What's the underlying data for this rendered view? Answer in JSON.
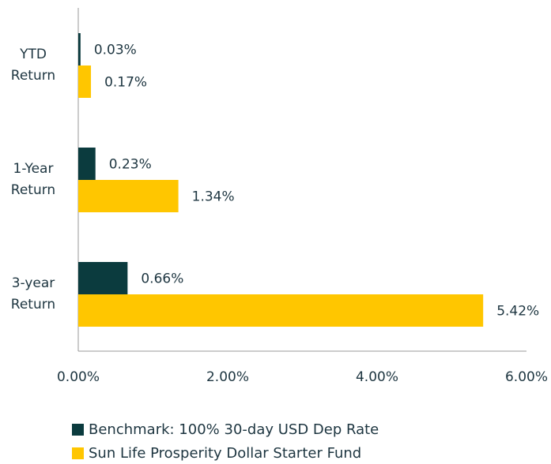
{
  "chart_data": {
    "type": "hbar",
    "categories": [
      "YTD Return",
      "1-Year Return",
      "3-year Return"
    ],
    "series": [
      {
        "name": "Benchmark: 100% 30-day USD Dep Rate",
        "color": "#0b3b3e",
        "values": [
          0.03,
          0.23,
          0.66
        ],
        "value_labels": [
          "0.03%",
          "0.23%",
          "0.66%"
        ]
      },
      {
        "name": "Sun Life Prosperity Dollar Starter Fund",
        "color": "#ffc600",
        "values": [
          0.17,
          1.34,
          5.42
        ],
        "value_labels": [
          "0.17%",
          "1.34%",
          "5.42%"
        ]
      }
    ],
    "xlim": [
      0,
      6
    ],
    "xticks": [
      {
        "value": 0,
        "label": "0.00%"
      },
      {
        "value": 2,
        "label": "2.00%"
      },
      {
        "value": 4,
        "label": "4.00%"
      },
      {
        "value": 6,
        "label": "6.00%"
      }
    ],
    "legend": "bottom"
  }
}
